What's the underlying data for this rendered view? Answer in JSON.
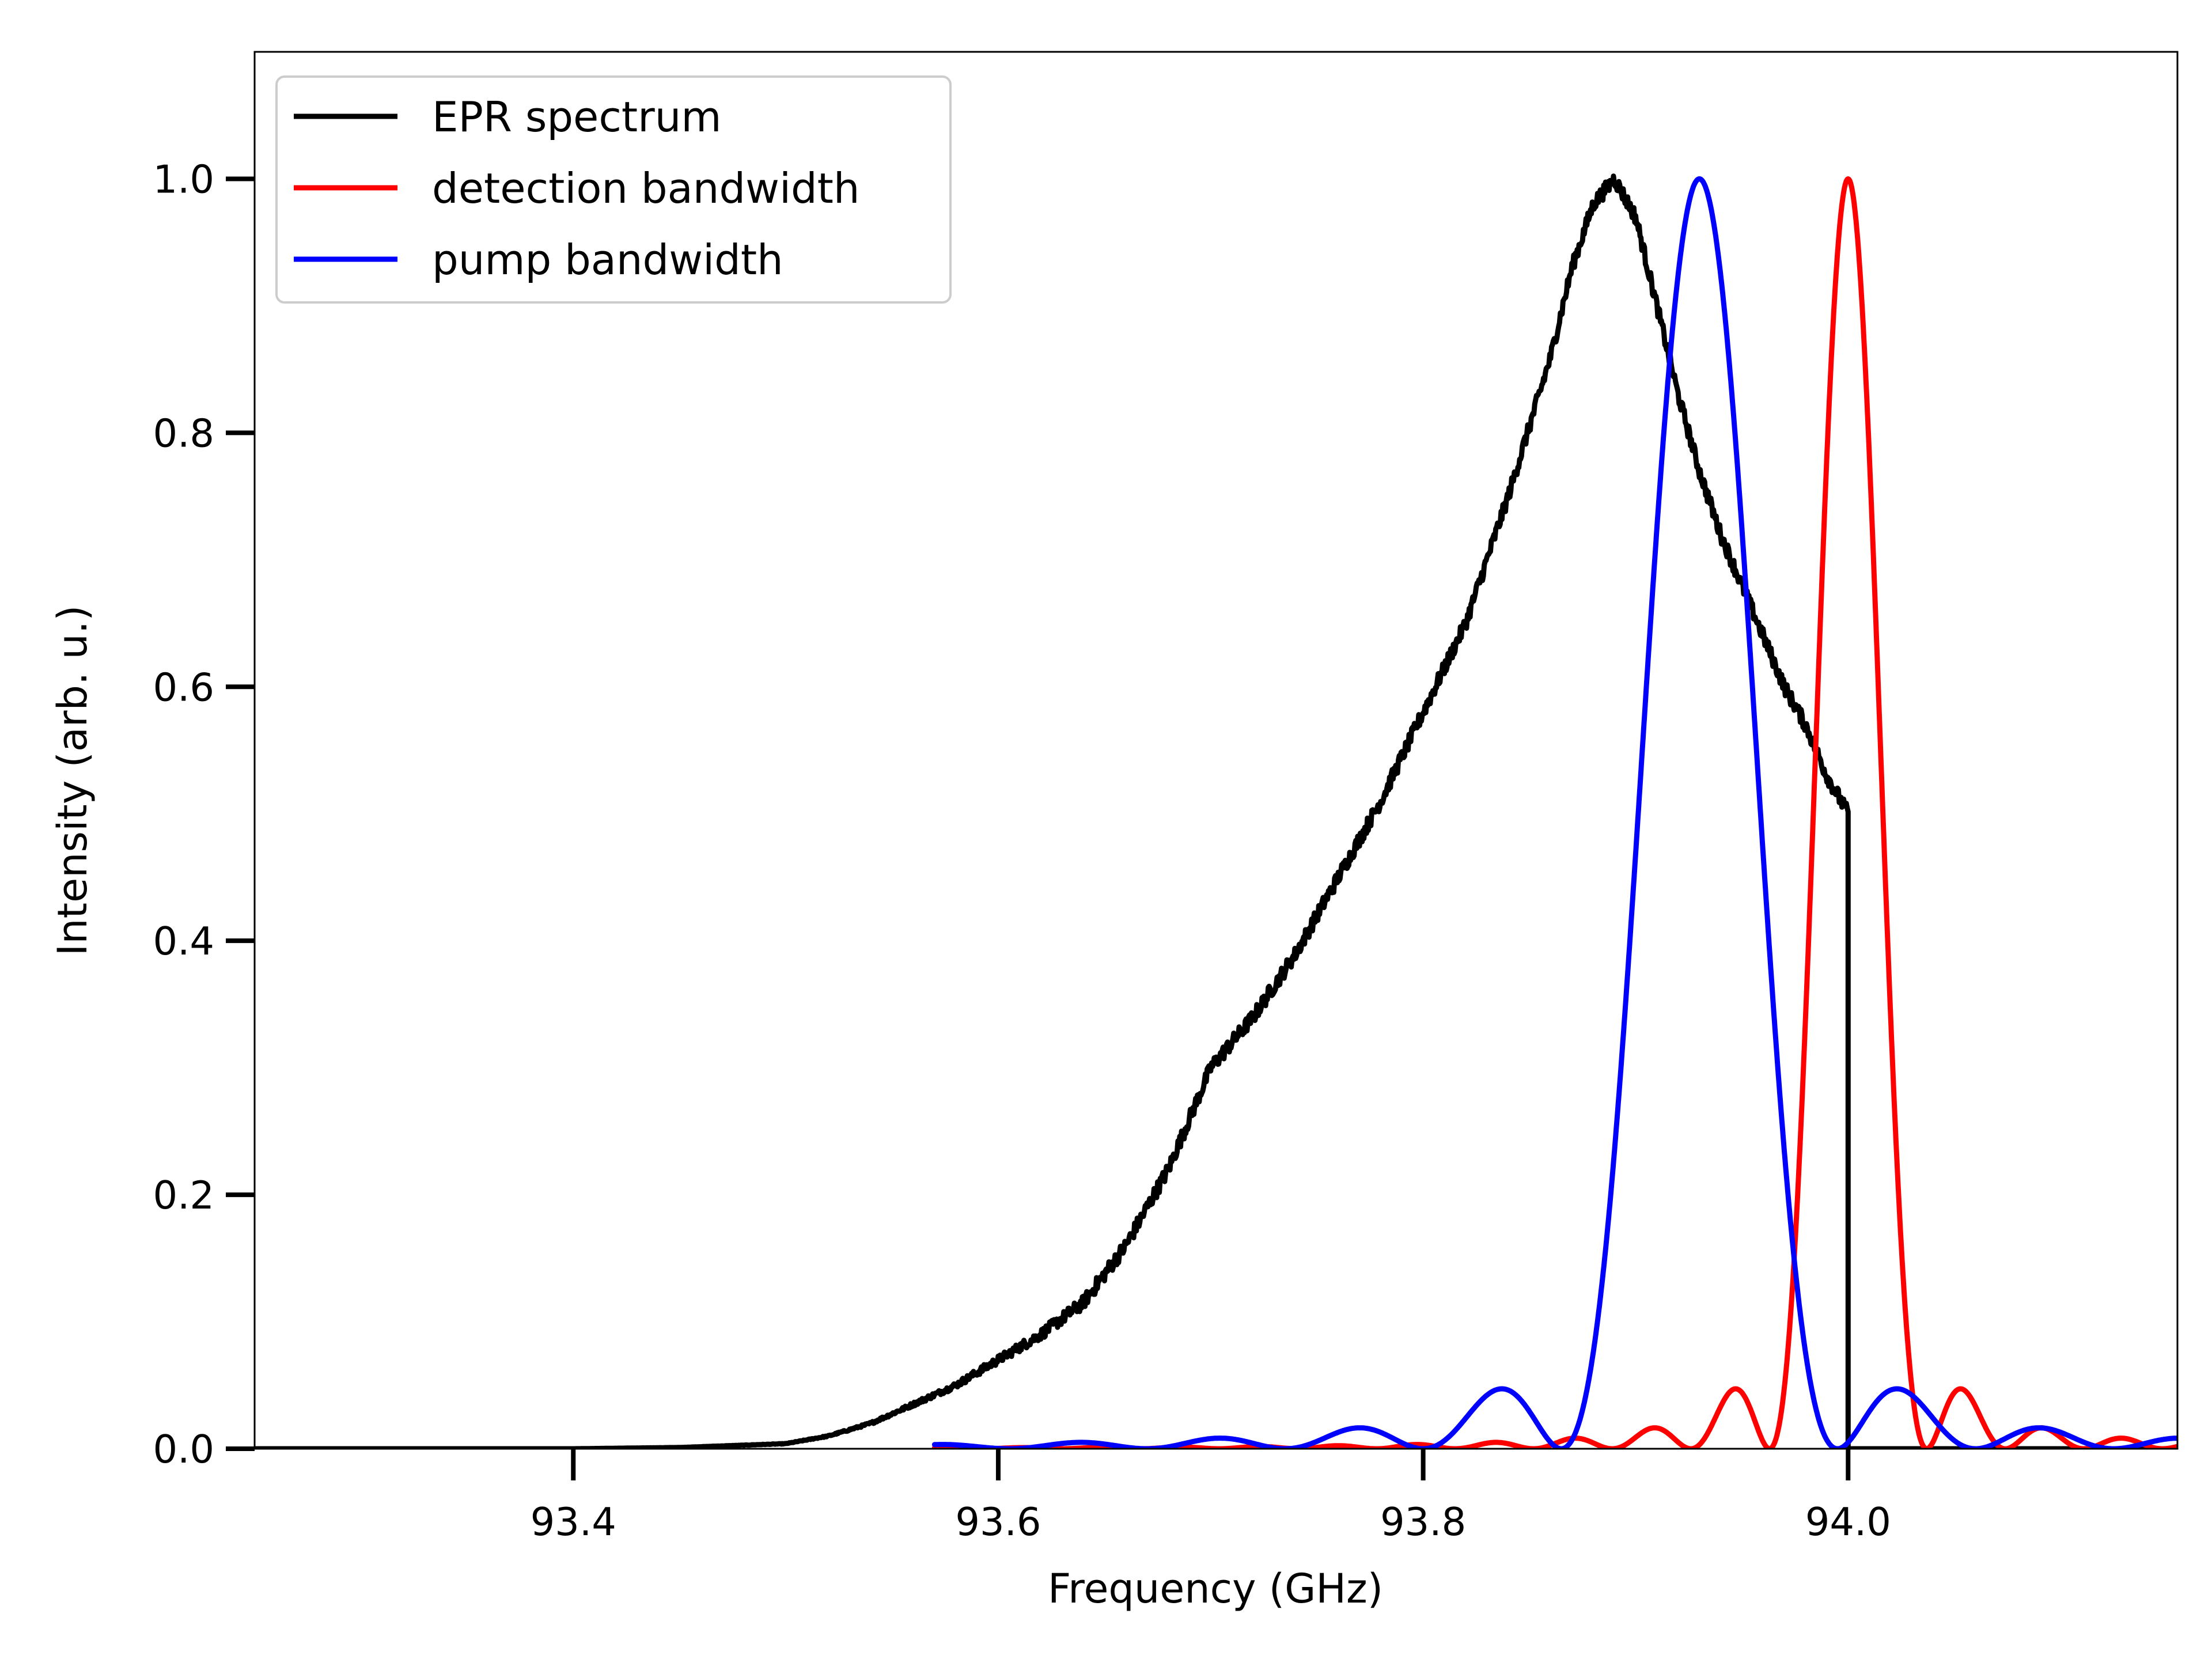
{
  "chart_data": {
    "type": "line",
    "title": "",
    "xlabel": "Frequency (GHz)",
    "ylabel": "Intensity (arb. u.)",
    "xlim": [
      93.25,
      94.155
    ],
    "ylim": [
      0.0,
      1.1
    ],
    "xticks": [
      "93.4",
      "93.6",
      "93.8",
      "94.0"
    ],
    "yticks": [
      "0.0",
      "0.2",
      "0.4",
      "0.6",
      "0.8",
      "1.0"
    ],
    "grid": false,
    "legend_position": "top-left",
    "series": [
      {
        "name": "EPR spectrum",
        "color": "#000000",
        "x": [
          93.25,
          93.4,
          93.45,
          93.5,
          93.52,
          93.54,
          93.56,
          93.58,
          93.6,
          93.62,
          93.64,
          93.66,
          93.68,
          93.7,
          93.72,
          93.74,
          93.76,
          93.78,
          93.8,
          93.82,
          93.84,
          93.86,
          93.87,
          93.88,
          93.89,
          93.9,
          93.91,
          93.92,
          93.93,
          93.94,
          93.95,
          93.96,
          93.97,
          93.98,
          93.99,
          94.0,
          94.0,
          94.155
        ],
        "y": [
          0.0,
          0.0,
          0.001,
          0.004,
          0.01,
          0.02,
          0.035,
          0.05,
          0.07,
          0.09,
          0.115,
          0.16,
          0.22,
          0.3,
          0.34,
          0.39,
          0.45,
          0.51,
          0.58,
          0.65,
          0.75,
          0.86,
          0.93,
          0.98,
          1.0,
          0.97,
          0.9,
          0.83,
          0.77,
          0.72,
          0.68,
          0.64,
          0.6,
          0.57,
          0.53,
          0.5,
          0.0,
          0.0
        ]
      },
      {
        "name": "detection bandwidth",
        "color": "#ff0000",
        "center": 94.0,
        "peak": 1.0,
        "main_lobe_halfwidth": 0.037,
        "x": [
          93.57,
          93.9,
          93.963,
          93.975,
          93.985,
          93.993,
          94.0,
          94.007,
          94.015,
          94.025,
          94.037,
          94.07,
          94.155
        ],
        "y": [
          0.0,
          0.0,
          0.0,
          0.13,
          0.45,
          0.85,
          1.0,
          0.85,
          0.45,
          0.13,
          0.0,
          0.0,
          0.0
        ]
      },
      {
        "name": "pump bandwidth",
        "color": "#0000ff",
        "center": 93.93,
        "peak": 1.0,
        "main_lobe_halfwidth": 0.065,
        "x": [
          93.57,
          93.614,
          93.653,
          93.686,
          93.723,
          93.759,
          93.795,
          93.834,
          93.865,
          93.93,
          93.995,
          94.028,
          94.068,
          94.103,
          94.155
        ],
        "y": [
          0.0,
          0.013,
          0.0,
          0.021,
          0.0,
          0.042,
          0.0,
          0.118,
          0.0,
          1.0,
          0.0,
          0.118,
          0.0,
          0.042,
          0.0
        ]
      }
    ]
  }
}
